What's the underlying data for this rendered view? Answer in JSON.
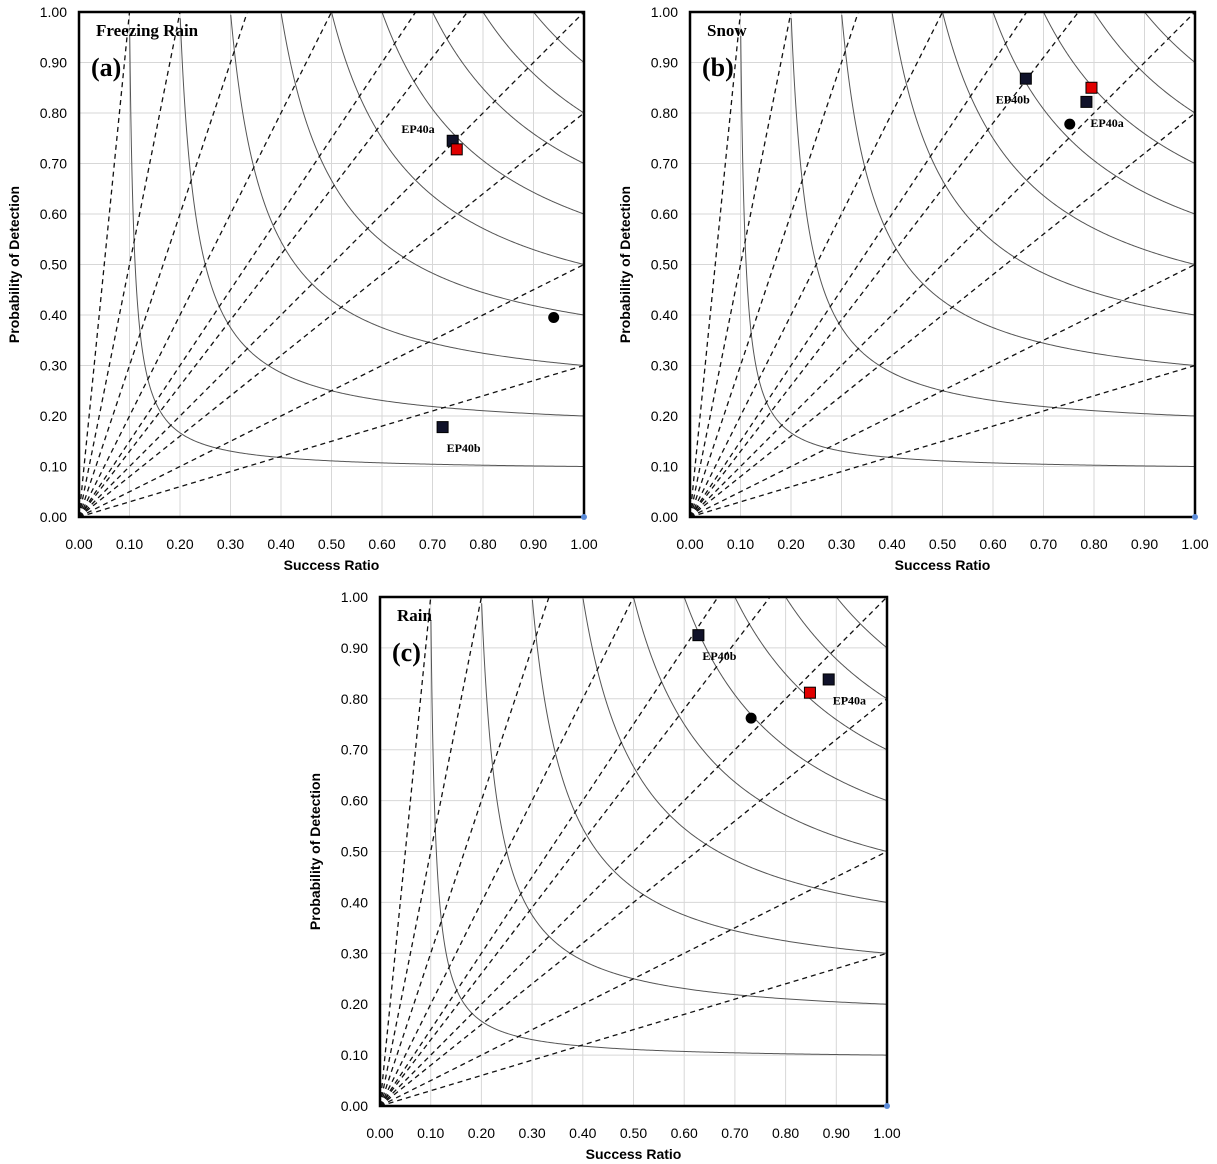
{
  "colors": {
    "observed_marker": "#e00000",
    "model_marker": "#10122a",
    "point_marker": "#000000",
    "grid": "#d7d7d7",
    "curve": "#555555",
    "axis_corner": "#5a8ad8"
  },
  "axes": {
    "xlabel": "Success Ratio",
    "ylabel": "Probability of Detection",
    "xlim": [
      0,
      1
    ],
    "ylim": [
      0,
      1
    ],
    "ticks": [
      "0.00",
      "0.10",
      "0.20",
      "0.30",
      "0.40",
      "0.50",
      "0.60",
      "0.70",
      "0.80",
      "0.90",
      "1.00"
    ],
    "grid": true
  },
  "chart_data": [
    {
      "type": "scatter",
      "panel": "(a)",
      "title": "Freezing Rain",
      "xlabel": "Success Ratio",
      "ylabel": "Probability of Detection",
      "xlim": [
        0,
        1
      ],
      "ylim": [
        0,
        1
      ],
      "csi_levels": [
        0.1,
        0.2,
        0.3,
        0.4,
        0.5,
        0.6,
        0.7,
        0.8,
        0.9
      ],
      "bias_levels": [
        0.3,
        0.5,
        0.8,
        1.0,
        1.3,
        1.5,
        2.0,
        3.0,
        5.0,
        10.0
      ],
      "points": [
        {
          "label": "EP40a",
          "x": 0.74,
          "y": 0.745,
          "marker": "square",
          "color": "model",
          "label_pos": "upper-left"
        },
        {
          "label": "",
          "x": 0.748,
          "y": 0.728,
          "marker": "square",
          "color": "observed"
        },
        {
          "label": "",
          "x": 0.94,
          "y": 0.395,
          "marker": "circle",
          "color": "point"
        },
        {
          "label": "EP40b",
          "x": 0.72,
          "y": 0.178,
          "marker": "square",
          "color": "model",
          "label_pos": "lower-right"
        }
      ]
    },
    {
      "type": "scatter",
      "panel": "(b)",
      "title": "Snow",
      "xlabel": "Success Ratio",
      "ylabel": "Probability of Detection",
      "xlim": [
        0,
        1
      ],
      "ylim": [
        0,
        1
      ],
      "csi_levels": [
        0.1,
        0.2,
        0.3,
        0.4,
        0.5,
        0.6,
        0.7,
        0.8,
        0.9
      ],
      "bias_levels": [
        0.3,
        0.5,
        0.8,
        1.0,
        1.3,
        1.5,
        2.0,
        3.0,
        5.0,
        10.0
      ],
      "points": [
        {
          "label": "EP40b",
          "x": 0.665,
          "y": 0.868,
          "marker": "square",
          "color": "model",
          "label_pos": "lower-left"
        },
        {
          "label": "",
          "x": 0.795,
          "y": 0.85,
          "marker": "square",
          "color": "observed"
        },
        {
          "label": "EP40a",
          "x": 0.785,
          "y": 0.822,
          "marker": "square",
          "color": "model",
          "label_pos": "lower-right"
        },
        {
          "label": "",
          "x": 0.752,
          "y": 0.778,
          "marker": "circle",
          "color": "point"
        }
      ]
    },
    {
      "type": "scatter",
      "panel": "(c)",
      "title": "Rain",
      "xlabel": "Success Ratio",
      "ylabel": "Probability of Detection",
      "xlim": [
        0,
        1
      ],
      "ylim": [
        0,
        1
      ],
      "csi_levels": [
        0.1,
        0.2,
        0.3,
        0.4,
        0.5,
        0.6,
        0.7,
        0.8,
        0.9
      ],
      "bias_levels": [
        0.3,
        0.5,
        0.8,
        1.0,
        1.3,
        1.5,
        2.0,
        3.0,
        5.0,
        10.0
      ],
      "points": [
        {
          "label": "EP40b",
          "x": 0.628,
          "y": 0.925,
          "marker": "square",
          "color": "model",
          "label_pos": "lower-right"
        },
        {
          "label": "",
          "x": 0.848,
          "y": 0.812,
          "marker": "square",
          "color": "observed"
        },
        {
          "label": "EP40a",
          "x": 0.885,
          "y": 0.838,
          "marker": "square",
          "color": "model",
          "label_pos": "lower-right"
        },
        {
          "label": "",
          "x": 0.732,
          "y": 0.762,
          "marker": "circle",
          "color": "point"
        }
      ]
    }
  ]
}
